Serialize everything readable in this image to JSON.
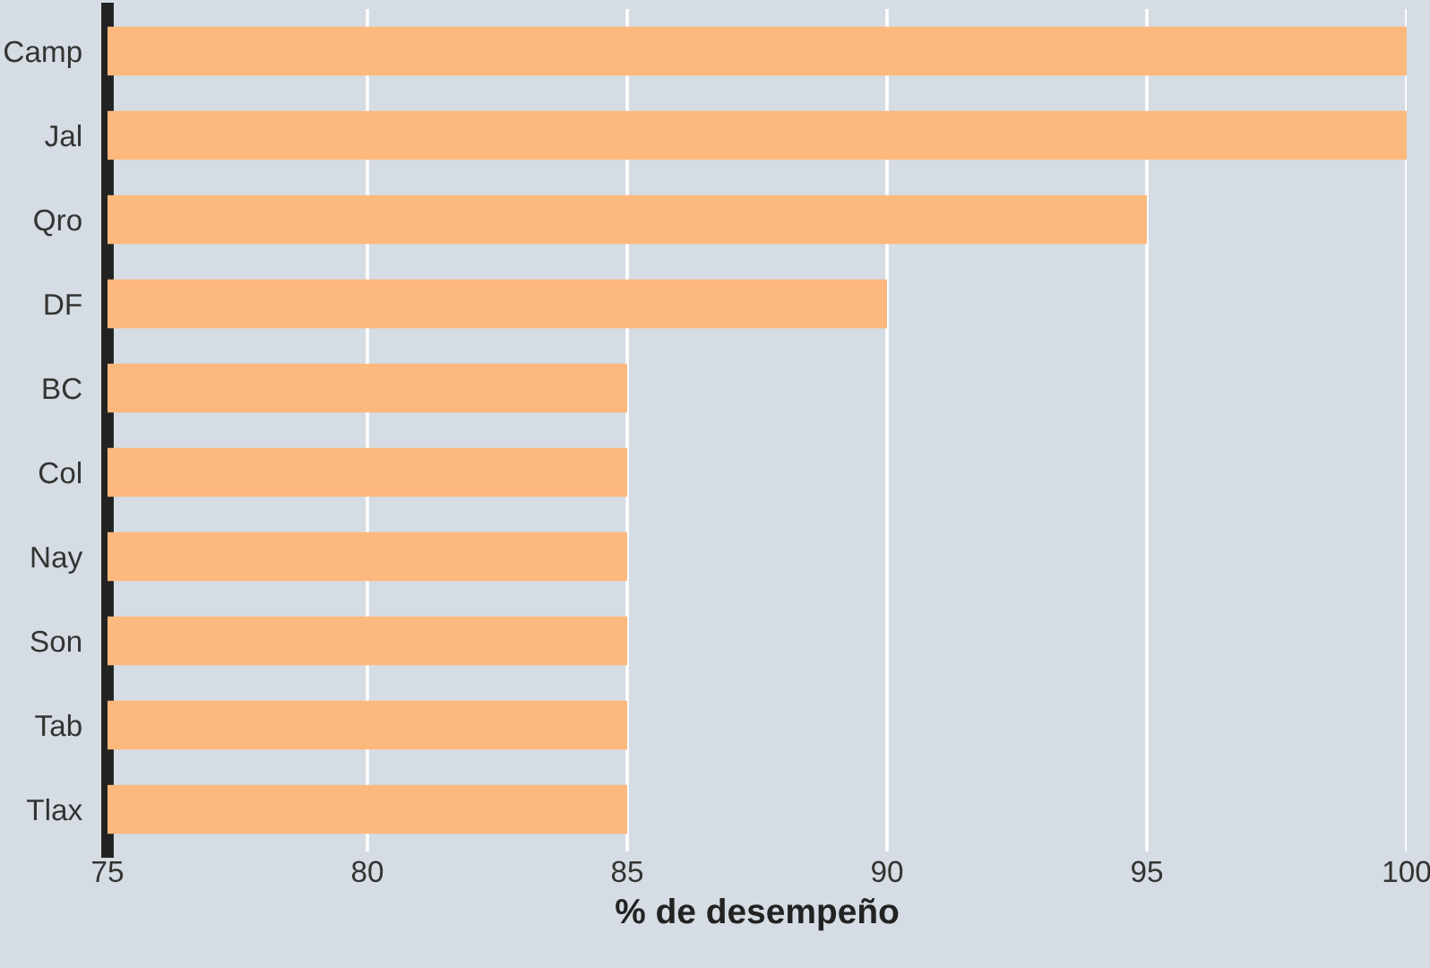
{
  "chart_data": {
    "type": "bar",
    "orientation": "horizontal",
    "xlabel": "% de desempeño",
    "categories": [
      "Camp",
      "Jal",
      "Qro",
      "DF",
      "BC",
      "Col",
      "Nay",
      "Son",
      "Tab",
      "Tlax"
    ],
    "values": [
      100,
      100,
      95,
      90,
      85,
      85,
      85,
      85,
      85,
      85
    ],
    "color": "#fdb97d",
    "xlim": [
      75,
      100
    ],
    "xticks": [
      75,
      80,
      85,
      90,
      95,
      100
    ],
    "grid": "x",
    "legend": false
  }
}
